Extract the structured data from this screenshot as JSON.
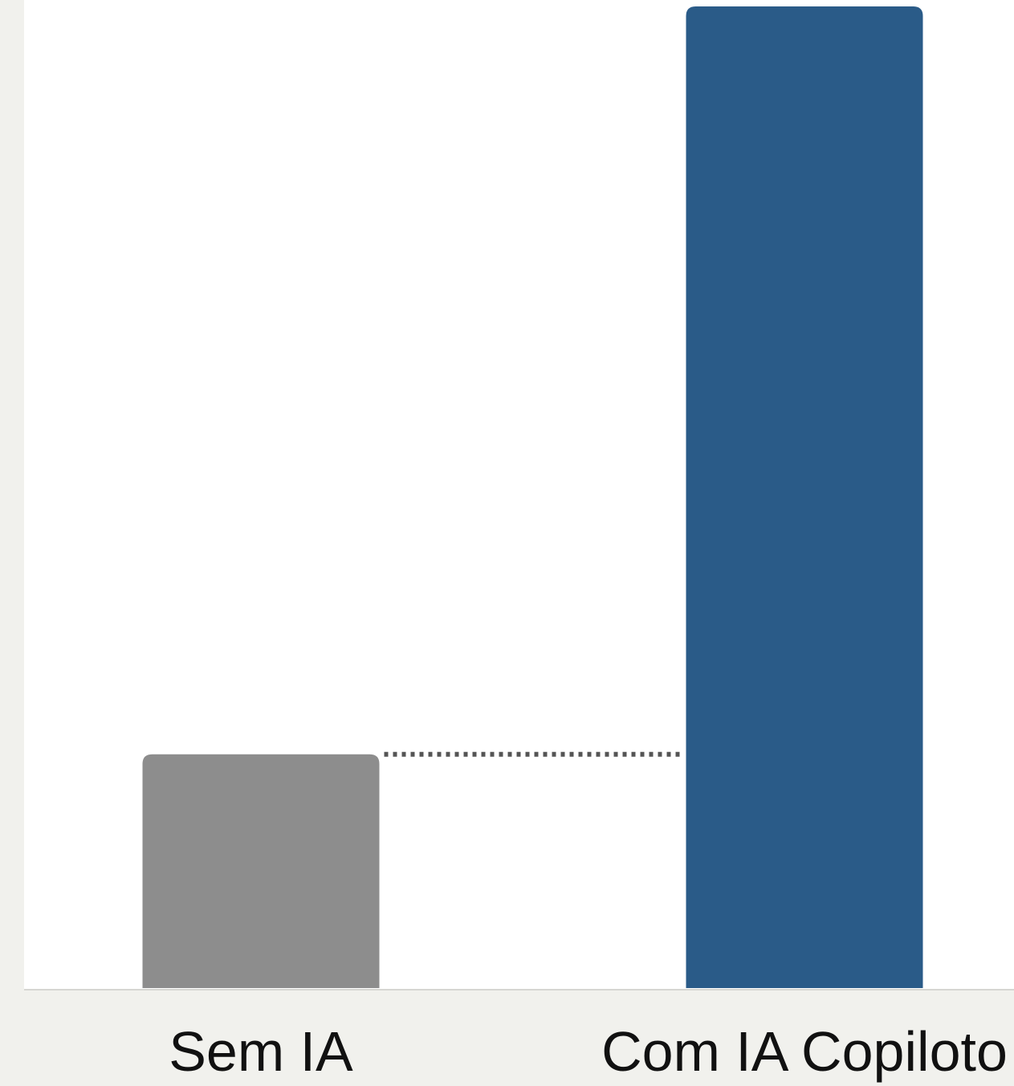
{
  "chart_data": {
    "type": "bar",
    "categories": [
      "Sem IA",
      "Com IA Copiloto"
    ],
    "values": [
      1,
      4.2
    ],
    "title": "",
    "xlabel": "",
    "ylabel": "",
    "ylim": [
      0,
      4.2
    ],
    "grid": false,
    "legend": "none",
    "colors": [
      "#8d8d8d",
      "#2a5b88"
    ],
    "reference_line": {
      "from_category": "Sem IA",
      "to_category": "Com IA Copiloto",
      "value": 1,
      "style": "dotted"
    }
  },
  "colors": {
    "background": "#f1f1ed",
    "plot_area": "#ffffff",
    "axis": "#d6d6d2",
    "reference_line": "#555555"
  }
}
